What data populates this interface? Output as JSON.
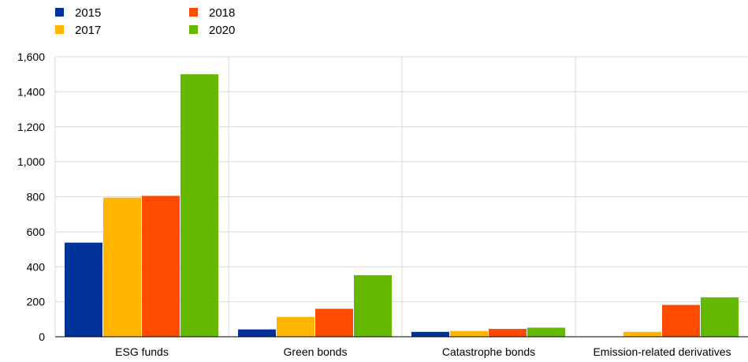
{
  "chart_data": {
    "type": "bar",
    "title": "",
    "xlabel": "",
    "ylabel": "",
    "categories": [
      "ESG funds",
      "Green bonds",
      "Catastrophe bonds",
      "Emission-related derivatives"
    ],
    "series": [
      {
        "name": "2015",
        "color": "#003299",
        "values": [
          538,
          42,
          28,
          0
        ]
      },
      {
        "name": "2017",
        "color": "#FFB400",
        "values": [
          795,
          113,
          33,
          28
        ]
      },
      {
        "name": "2018",
        "color": "#FF4B00",
        "values": [
          805,
          160,
          45,
          182
        ]
      },
      {
        "name": "2020",
        "color": "#65B800",
        "values": [
          1500,
          352,
          52,
          225
        ]
      }
    ],
    "ylim": [
      0,
      1600
    ],
    "yticks": [
      0,
      200,
      400,
      600,
      800,
      1000,
      1200,
      1400,
      1600
    ],
    "ytick_labels": [
      "0",
      "200",
      "400",
      "600",
      "800",
      "1,000",
      "1,200",
      "1,400",
      "1,600"
    ],
    "grid": true,
    "legend_position": "top-left"
  }
}
